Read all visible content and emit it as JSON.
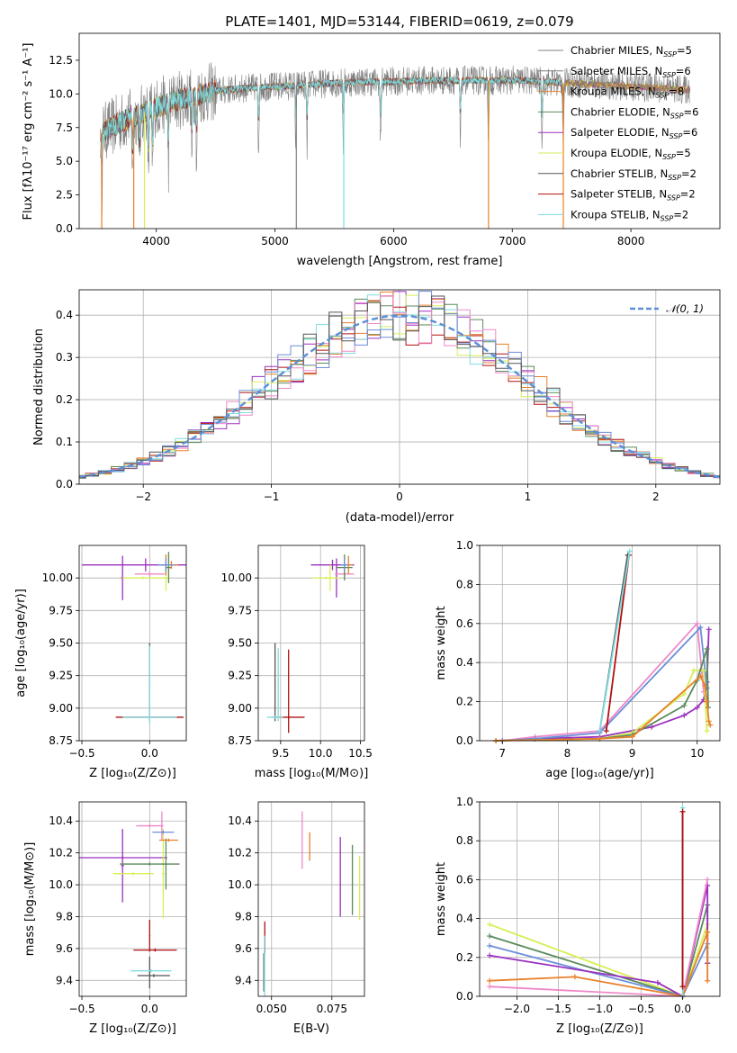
{
  "colors": {
    "Chabrier MILES": "#808080",
    "Salpeter MILES": "#7a7a7a",
    "Kroupa MILES": "#e8802a",
    "Chabrier ELODIE": "#5a8a5a",
    "Salpeter ELODIE": "#9b30c0",
    "Kroupa ELODIE": "#d8ee58",
    "Chabrier STELIB": "#555555",
    "Salpeter STELIB": "#b01010",
    "Kroupa STELIB": "#80dde0",
    "normal": "#5b8fd6",
    "pink": "#ee88c8",
    "blue": "#6a8fd8"
  },
  "chart_data": [
    {
      "id": "spectrum",
      "type": "line",
      "title": "PLATE=1401, MJD=53144, FIBERID=0619, z=0.079",
      "xlabel": "wavelength [Angstrom, rest frame]",
      "ylabel": "Flux [fλ10⁻¹⁷ erg cm⁻² s⁻¹ A⁻¹]",
      "xlim": [
        3350,
        8750
      ],
      "ylim": [
        0,
        14.5
      ],
      "xticks": [
        "4000",
        "5000",
        "6000",
        "7000",
        "8000"
      ],
      "yticks": [
        "0.0",
        "2.5",
        "5.0",
        "7.5",
        "10.0",
        "12.5"
      ],
      "legend_position": "right",
      "legend": [
        {
          "label": "Chabrier MILES, N",
          "sub": "SSP",
          "val": "=5"
        },
        {
          "label": "Salpeter MILES, N",
          "sub": "SSP",
          "val": "=6"
        },
        {
          "label": "Kroupa MILES, N",
          "sub": "SSP",
          "val": "=8"
        },
        {
          "label": "Chabrier ELODIE, N",
          "sub": "SSP",
          "val": "=6"
        },
        {
          "label": "Salpeter ELODIE, N",
          "sub": "SSP",
          "val": "=6"
        },
        {
          "label": "Kroupa ELODIE, N",
          "sub": "SSP",
          "val": "=5"
        },
        {
          "label": "Chabrier STELIB, N",
          "sub": "SSP",
          "val": "=2"
        },
        {
          "label": "Salpeter STELIB, N",
          "sub": "SSP",
          "val": "=2"
        },
        {
          "label": "Kroupa STELIB, N",
          "sub": "SSP",
          "val": "=2"
        }
      ],
      "continuum_x": [
        3520,
        3600,
        3700,
        3800,
        3900,
        4000,
        4100,
        4200,
        4300,
        4400,
        4500,
        4700,
        4900,
        5100,
        5300,
        5500,
        5700,
        5900,
        6100,
        6300,
        6500,
        6700,
        6900,
        7100,
        7300,
        7500,
        7700,
        7900,
        8100,
        8300,
        8500
      ],
      "continuum_y": [
        7.0,
        7.4,
        7.9,
        8.3,
        8.6,
        9.0,
        9.3,
        9.6,
        9.8,
        10.0,
        10.2,
        10.4,
        10.5,
        10.6,
        10.7,
        10.8,
        10.9,
        10.9,
        10.95,
        11.0,
        11.0,
        11.0,
        11.0,
        11.0,
        10.9,
        10.8,
        10.7,
        10.6,
        10.5,
        10.4,
        10.3
      ]
    },
    {
      "id": "residuals",
      "type": "line",
      "xlabel": "(data-model)/error",
      "ylabel": "Normed distribution",
      "xlim": [
        -2.5,
        2.5
      ],
      "ylim": [
        0,
        0.46
      ],
      "xticks": [
        "−2",
        "−1",
        "0",
        "1",
        "2"
      ],
      "yticks": [
        "0.0",
        "0.1",
        "0.2",
        "0.3",
        "0.4"
      ],
      "legend_position": "top-right",
      "legend": "𝒩(0, 1)",
      "gauss_mean": 0,
      "gauss_sigma": 1
    },
    {
      "id": "age-Z",
      "type": "scatter",
      "xlabel": "Z [log₁₀(Z/Z⊙)]",
      "ylabel": "age  [log₁₀(age/yr)]",
      "xlim": [
        -0.52,
        0.27
      ],
      "ylim": [
        8.75,
        10.25
      ],
      "xticks": [
        "−0.5",
        "0.0"
      ],
      "yticks": [
        "8.75",
        "9.00",
        "9.25",
        "9.50",
        "9.75",
        "10.00"
      ],
      "points": [
        {
          "x": -0.03,
          "y": 10.1,
          "ex": 0.47,
          "ey": 0.05,
          "c": "#9b30c0"
        },
        {
          "x": -0.2,
          "y": 10.0,
          "ex": 0.01,
          "ey": 0.17,
          "c": "#9b30c0"
        },
        {
          "x": 0.0,
          "y": 10.03,
          "ex": 0.11,
          "ey": 0.02,
          "c": "#ee88c8"
        },
        {
          "x": -0.05,
          "y": 10.0,
          "ex": 0.15,
          "ey": 0.01,
          "c": "#d8ee58"
        },
        {
          "x": 0.12,
          "y": 10.0,
          "ex": 0.02,
          "ey": 0.1,
          "c": "#d8ee58"
        },
        {
          "x": 0.14,
          "y": 10.08,
          "ex": 0.02,
          "ey": 0.12,
          "c": "#5a8a5a"
        },
        {
          "x": 0.16,
          "y": 10.1,
          "ex": 0.05,
          "ey": 0.03,
          "c": "#e8802a"
        },
        {
          "x": 0.12,
          "y": 10.1,
          "ex": 0.01,
          "ey": 0.08,
          "c": "#e8802a"
        },
        {
          "x": 0.12,
          "y": 10.1,
          "ex": 0.06,
          "ey": 0.05,
          "c": "#6a8fd8"
        },
        {
          "x": 0.0,
          "y": 8.93,
          "ex": 0.25,
          "ey": 0.01,
          "c": "#b01010"
        },
        {
          "x": 0.0,
          "y": 9.2,
          "ex": 0.005,
          "ey": 0.3,
          "c": "#555555"
        },
        {
          "x": 0.0,
          "y": 8.93,
          "ex": 0.2,
          "ey": 0.01,
          "c": "#80dde0"
        },
        {
          "x": 0.0,
          "y": 9.18,
          "ex": 0.005,
          "ey": 0.3,
          "c": "#80dde0"
        }
      ]
    },
    {
      "id": "age-mass",
      "type": "scatter",
      "xlabel": "mass [log₁₀(M/M⊙)]",
      "ylabel": "",
      "xlim": [
        9.22,
        10.55
      ],
      "ylim": [
        8.75,
        10.25
      ],
      "xticks": [
        "9.5",
        "10.0",
        "10.5"
      ],
      "yticks": [
        "8.75",
        "9.00",
        "9.25",
        "9.50",
        "9.75",
        "10.00"
      ],
      "points": [
        {
          "x": 10.15,
          "y": 10.1,
          "ex": 0.27,
          "ey": 0.04,
          "c": "#9b30c0"
        },
        {
          "x": 10.2,
          "y": 10.0,
          "ex": 0.01,
          "ey": 0.15,
          "c": "#9b30c0"
        },
        {
          "x": 10.3,
          "y": 10.03,
          "ex": 0.12,
          "ey": 0.03,
          "c": "#ee88c8"
        },
        {
          "x": 10.07,
          "y": 10.0,
          "ex": 0.17,
          "ey": 0.01,
          "c": "#d8ee58"
        },
        {
          "x": 10.12,
          "y": 10.0,
          "ex": 0.01,
          "ey": 0.1,
          "c": "#d8ee58"
        },
        {
          "x": 10.3,
          "y": 10.08,
          "ex": 0.1,
          "ey": 0.1,
          "c": "#5a8a5a"
        },
        {
          "x": 10.35,
          "y": 10.1,
          "ex": 0.05,
          "ey": 0.07,
          "c": "#e8802a"
        },
        {
          "x": 10.3,
          "y": 10.1,
          "ex": 0.05,
          "ey": 0.05,
          "c": "#6a8fd8"
        },
        {
          "x": 9.6,
          "y": 8.93,
          "ex": 0.2,
          "ey": 0.01,
          "c": "#b01010"
        },
        {
          "x": 9.6,
          "y": 9.13,
          "ex": 0.005,
          "ey": 0.32,
          "c": "#b01010"
        },
        {
          "x": 9.43,
          "y": 9.2,
          "ex": 0.005,
          "ey": 0.3,
          "c": "#555555"
        },
        {
          "x": 9.43,
          "y": 8.93,
          "ex": 0.1,
          "ey": 0.01,
          "c": "#80dde0"
        },
        {
          "x": 9.47,
          "y": 9.18,
          "ex": 0.005,
          "ey": 0.28,
          "c": "#80dde0"
        }
      ]
    },
    {
      "id": "weight-age",
      "type": "line",
      "xlabel": "age  [log₁₀(age/yr)]",
      "ylabel": "mass weight",
      "xlim": [
        6.65,
        10.35
      ],
      "ylim": [
        0,
        1.0
      ],
      "xticks": [
        "7",
        "8",
        "9",
        "10"
      ],
      "yticks": [
        "0.0",
        "0.2",
        "0.4",
        "0.6",
        "0.8",
        "1.0"
      ],
      "series": [
        {
          "c": "#9b30c0",
          "x": [
            6.9,
            7.5,
            8.5,
            9.3,
            9.8,
            10.0,
            10.1,
            10.15,
            10.18
          ],
          "y": [
            0.0,
            0.01,
            0.02,
            0.07,
            0.13,
            0.17,
            0.21,
            0.3,
            0.57
          ]
        },
        {
          "c": "#ee88c8",
          "x": [
            7.0,
            7.5,
            8.5,
            10.0,
            10.1
          ],
          "y": [
            0.0,
            0.02,
            0.05,
            0.6,
            0.25
          ]
        },
        {
          "c": "#6a8fd8",
          "x": [
            7.0,
            7.5,
            8.5,
            10.05,
            10.15
          ],
          "y": [
            0.0,
            0.01,
            0.04,
            0.58,
            0.27
          ]
        },
        {
          "c": "#d8ee58",
          "x": [
            6.9,
            8.5,
            9.0,
            9.8,
            9.95,
            10.1,
            10.15
          ],
          "y": [
            0.0,
            0.01,
            0.04,
            0.24,
            0.36,
            0.36,
            0.05
          ]
        },
        {
          "c": "#5a8a5a",
          "x": [
            6.9,
            8.5,
            9.0,
            9.8,
            10.0,
            10.15,
            10.17
          ],
          "y": [
            0.0,
            0.01,
            0.03,
            0.18,
            0.31,
            0.47,
            0.17
          ]
        },
        {
          "c": "#e8802a",
          "x": [
            6.9,
            8.5,
            9.0,
            10.05,
            10.12,
            10.15,
            10.18,
            10.2
          ],
          "y": [
            0.0,
            0.01,
            0.02,
            0.33,
            0.28,
            0.2,
            0.1,
            0.08
          ]
        },
        {
          "c": "#b01010",
          "x": [
            8.6,
            8.95
          ],
          "y": [
            0.05,
            0.95
          ]
        },
        {
          "c": "#555555",
          "x": [
            8.5,
            8.93
          ],
          "y": [
            0.05,
            0.95
          ]
        },
        {
          "c": "#80dde0",
          "x": [
            8.5,
            8.96
          ],
          "y": [
            0.05,
            0.97
          ]
        }
      ]
    },
    {
      "id": "mass-Z",
      "type": "scatter",
      "xlabel": "Z [log₁₀(Z/Z⊙)]",
      "ylabel": "mass [log₁₀(M/M⊙)]",
      "xlim": [
        -0.52,
        0.27
      ],
      "ylim": [
        9.3,
        10.52
      ],
      "xticks": [
        "−0.5",
        "0.0"
      ],
      "yticks": [
        "9.4",
        "9.6",
        "9.8",
        "10.0",
        "10.2",
        "10.4"
      ],
      "points": [
        {
          "x": -0.2,
          "y": 10.17,
          "ex": 0.33,
          "ey": 0.01,
          "c": "#9b30c0"
        },
        {
          "x": -0.2,
          "y": 10.12,
          "ex": 0.01,
          "ey": 0.23,
          "c": "#9b30c0"
        },
        {
          "x": 0.0,
          "y": 10.37,
          "ex": 0.1,
          "ey": 0.01,
          "c": "#ee88c8"
        },
        {
          "x": 0.09,
          "y": 10.37,
          "ex": 0.01,
          "ey": 0.09,
          "c": "#ee88c8"
        },
        {
          "x": -0.12,
          "y": 10.07,
          "ex": 0.15,
          "ey": 0.01,
          "c": "#d8ee58"
        },
        {
          "x": 0.1,
          "y": 10.07,
          "ex": 0.01,
          "ey": 0.28,
          "c": "#d8ee58"
        },
        {
          "x": 0.0,
          "y": 10.13,
          "ex": 0.22,
          "ey": 0.01,
          "c": "#5a8a5a"
        },
        {
          "x": 0.12,
          "y": 10.13,
          "ex": 0.01,
          "ey": 0.16,
          "c": "#5a8a5a"
        },
        {
          "x": 0.14,
          "y": 10.28,
          "ex": 0.07,
          "ey": 0.01,
          "c": "#e8802a"
        },
        {
          "x": 0.1,
          "y": 10.33,
          "ex": 0.08,
          "ey": 0.01,
          "c": "#6a8fd8"
        },
        {
          "x": 0.04,
          "y": 9.59,
          "ex": 0.16,
          "ey": 0.01,
          "c": "#b01010"
        },
        {
          "x": 0.0,
          "y": 9.68,
          "ex": 0.005,
          "ey": 0.1,
          "c": "#b01010"
        },
        {
          "x": 0.03,
          "y": 9.43,
          "ex": 0.12,
          "ey": 0.01,
          "c": "#555555"
        },
        {
          "x": 0.0,
          "y": 9.45,
          "ex": 0.005,
          "ey": 0.1,
          "c": "#555555"
        },
        {
          "x": 0.01,
          "y": 9.46,
          "ex": 0.15,
          "ey": 0.01,
          "c": "#80dde0"
        }
      ]
    },
    {
      "id": "mass-EBV",
      "type": "scatter",
      "xlabel": "E(B-V)",
      "ylabel": "",
      "xlim": [
        0.0445,
        0.0885
      ],
      "ylim": [
        9.3,
        10.52
      ],
      "xticks": [
        "0.050",
        "0.075"
      ],
      "yticks": [
        "9.4",
        "9.6",
        "9.8",
        "10.0",
        "10.2",
        "10.4"
      ],
      "points": [
        {
          "x": 0.0472,
          "y": 9.67,
          "ex": 0,
          "ey": 0.1,
          "c": "#b01010"
        },
        {
          "x": 0.0468,
          "y": 9.45,
          "ex": 0,
          "ey": 0.12,
          "c": "#555555"
        },
        {
          "x": 0.0471,
          "y": 9.48,
          "ex": 0,
          "ey": 0.2,
          "c": "#80dde0"
        },
        {
          "x": 0.0627,
          "y": 10.28,
          "ex": 0,
          "ey": 0.18,
          "c": "#ee88c8"
        },
        {
          "x": 0.0658,
          "y": 10.24,
          "ex": 0,
          "ey": 0.09,
          "c": "#e8802a"
        },
        {
          "x": 0.0785,
          "y": 10.05,
          "ex": 0,
          "ey": 0.25,
          "c": "#9b30c0"
        },
        {
          "x": 0.0835,
          "y": 10.03,
          "ex": 0,
          "ey": 0.22,
          "c": "#5a8a5a"
        },
        {
          "x": 0.0865,
          "y": 9.98,
          "ex": 0,
          "ey": 0.2,
          "c": "#d8ee58"
        }
      ]
    },
    {
      "id": "weight-Z",
      "type": "line",
      "xlabel": "Z [log₁₀(Z/Z⊙)]",
      "ylabel": "mass weight",
      "xlim": [
        -2.45,
        0.45
      ],
      "ylim": [
        0,
        1.0
      ],
      "xticks": [
        "−2.0",
        "−1.5",
        "−1.0",
        "−0.5",
        "0.0"
      ],
      "yticks": [
        "0.0",
        "0.2",
        "0.4",
        "0.6",
        "0.8",
        "1.0"
      ],
      "series": [
        {
          "c": "#d8ee58",
          "x": [
            -2.33,
            0.0,
            0.3,
            0.3
          ],
          "y": [
            0.37,
            0.0,
            0.37,
            0.25
          ]
        },
        {
          "c": "#5a8a5a",
          "x": [
            -2.33,
            0.0,
            0.3,
            0.3
          ],
          "y": [
            0.31,
            0.0,
            0.47,
            0.17
          ]
        },
        {
          "c": "#6a8fd8",
          "x": [
            -2.33,
            0.0,
            0.3
          ],
          "y": [
            0.26,
            0.0,
            0.27
          ]
        },
        {
          "c": "#9b30c0",
          "x": [
            -2.33,
            -0.3,
            0.0,
            0.3,
            0.3
          ],
          "y": [
            0.21,
            0.07,
            0.0,
            0.57,
            0.17
          ]
        },
        {
          "c": "#ee88c8",
          "x": [
            -2.33,
            0.0,
            0.3
          ],
          "y": [
            0.05,
            0.0,
            0.6
          ]
        },
        {
          "c": "#e8802a",
          "x": [
            -2.33,
            -1.3,
            0.0,
            0.3,
            0.3
          ],
          "y": [
            0.08,
            0.1,
            0.0,
            0.33,
            0.08
          ]
        },
        {
          "c": "#80dde0",
          "x": [
            0.0,
            0.0
          ],
          "y": [
            0.97,
            0.0
          ]
        },
        {
          "c": "#555555",
          "x": [
            0.0,
            0.0
          ],
          "y": [
            0.95,
            0.05
          ]
        },
        {
          "c": "#b01010",
          "x": [
            0.0,
            0.0
          ],
          "y": [
            0.95,
            0.05
          ]
        }
      ]
    }
  ]
}
